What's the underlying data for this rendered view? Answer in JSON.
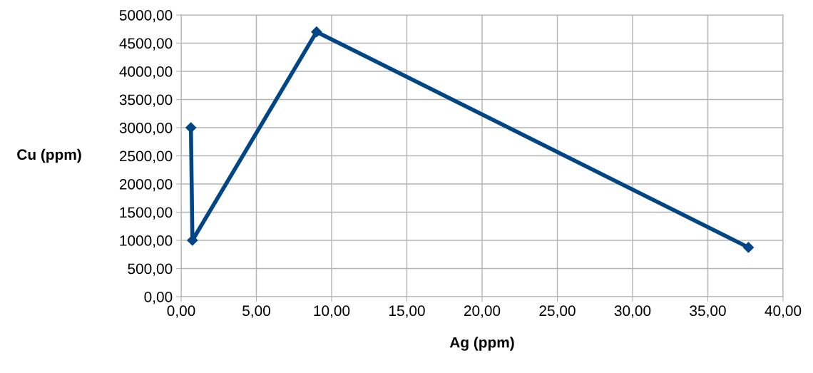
{
  "chart_data": {
    "type": "line",
    "xlabel": "Ag (ppm)",
    "ylabel": "Cu (ppm)",
    "x": [
      0.65,
      0.75,
      9.0,
      37.7
    ],
    "series": [
      {
        "color": "#004586",
        "values": [
          3000,
          1000,
          4700,
          875
        ]
      }
    ],
    "xlim": [
      0,
      40
    ],
    "ylim": [
      0,
      5000
    ],
    "xticks": [
      {
        "value": 0,
        "label": "0,00"
      },
      {
        "value": 5,
        "label": "5,00"
      },
      {
        "value": 10,
        "label": "10,00"
      },
      {
        "value": 15,
        "label": "15,00"
      },
      {
        "value": 20,
        "label": "20,00"
      },
      {
        "value": 25,
        "label": "25,00"
      },
      {
        "value": 30,
        "label": "30,00"
      },
      {
        "value": 35,
        "label": "35,00"
      },
      {
        "value": 40,
        "label": "40,00"
      }
    ],
    "yticks": [
      {
        "value": 0,
        "label": "0,00"
      },
      {
        "value": 500,
        "label": "500,00"
      },
      {
        "value": 1000,
        "label": "1000,00"
      },
      {
        "value": 1500,
        "label": "1500,00"
      },
      {
        "value": 2000,
        "label": "2000,00"
      },
      {
        "value": 2500,
        "label": "2500,00"
      },
      {
        "value": 3000,
        "label": "3000,00"
      },
      {
        "value": 3500,
        "label": "3500,00"
      },
      {
        "value": 4000,
        "label": "4000,00"
      },
      {
        "value": 4500,
        "label": "4500,00"
      },
      {
        "value": 5000,
        "label": "5000,00"
      }
    ],
    "grid": true,
    "marker": "diamond",
    "line_style": "solid"
  }
}
